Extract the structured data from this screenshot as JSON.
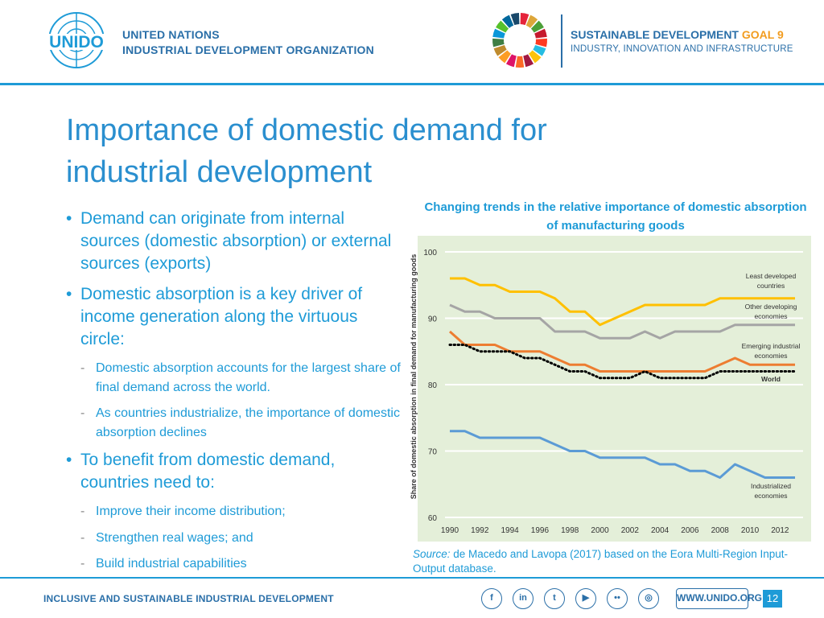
{
  "header": {
    "org_line1": "UNITED NATIONS",
    "org_line2": "INDUSTRIAL DEVELOPMENT ORGANIZATION",
    "logo_text": "UNIDO",
    "sdg_title_main": "SUSTAINABLE DEVELOPMENT",
    "sdg_title_goal": "GOAL 9",
    "sdg_subtitle": "INDUSTRY, INNOVATION AND INFRASTRUCTURE"
  },
  "slide": {
    "title_line1": "Importance of domestic demand for",
    "title_line2": "industrial development",
    "bullets": [
      {
        "level": 1,
        "text": "Demand can originate from internal sources (domestic absorption) or external sources (exports)"
      },
      {
        "level": 1,
        "text": "Domestic absorption is a key driver of income generation along the virtuous circle:"
      },
      {
        "level": 2,
        "text": "Domestic absorption accounts for the largest share of final demand across the world."
      },
      {
        "level": 2,
        "text": "As countries industrialize, the importance of domestic absorption declines"
      },
      {
        "level": 1,
        "text": "To benefit from domestic demand, countries need to:"
      },
      {
        "level": 2,
        "text": "Improve their income distribution;"
      },
      {
        "level": 2,
        "text": "Strengthen real wages; and"
      },
      {
        "level": 2,
        "text": "Build industrial capabilities"
      }
    ],
    "source_label": "Source:",
    "source_text": " de Macedo and Lavopa (2017) based on the Eora Multi-Region Input-Output database."
  },
  "chart_data": {
    "type": "line",
    "title": "Changing trends in the relative importance of domestic absorption of manufacturing goods",
    "ylabel": "Share of domestic absorption in final demand for manufacturing goods",
    "xlabel": "",
    "ylim": [
      60,
      100
    ],
    "yticks": [
      60,
      70,
      80,
      90,
      100
    ],
    "x": [
      1990,
      1991,
      1992,
      1993,
      1994,
      1995,
      1996,
      1997,
      1998,
      1999,
      2000,
      2001,
      2002,
      2003,
      2004,
      2005,
      2006,
      2007,
      2008,
      2009,
      2010,
      2011,
      2012,
      2013
    ],
    "xtick_labels": [
      "1990",
      "1992",
      "1994",
      "1996",
      "1998",
      "2000",
      "2002",
      "2004",
      "2006",
      "2008",
      "2010",
      "2012"
    ],
    "grid": true,
    "background": "#e4efd9",
    "series": [
      {
        "name": "Least developed countries",
        "label_lines": [
          "Least developed",
          "countries"
        ],
        "color": "#ffc000",
        "dashed": false,
        "values": [
          96,
          96,
          95,
          95,
          94,
          94,
          94,
          93,
          91,
          91,
          89,
          90,
          91,
          92,
          92,
          92,
          92,
          92,
          93,
          93,
          93,
          93,
          93,
          93
        ]
      },
      {
        "name": "Other developing economies",
        "label_lines": [
          "Other developing",
          "economies"
        ],
        "color": "#a5a5a5",
        "dashed": false,
        "values": [
          92,
          91,
          91,
          90,
          90,
          90,
          90,
          88,
          88,
          88,
          87,
          87,
          87,
          88,
          87,
          88,
          88,
          88,
          88,
          89,
          89,
          89,
          89,
          89
        ]
      },
      {
        "name": "Emerging industrial economies",
        "label_lines": [
          "Emerging industrial",
          "economies"
        ],
        "color": "#ed7d31",
        "dashed": false,
        "values": [
          88,
          86,
          86,
          86,
          85,
          85,
          85,
          84,
          83,
          83,
          82,
          82,
          82,
          82,
          82,
          82,
          82,
          82,
          83,
          84,
          83,
          83,
          83,
          83
        ]
      },
      {
        "name": "World",
        "label_lines": [
          "World"
        ],
        "color": "#000000",
        "dashed": true,
        "values": [
          86,
          86,
          85,
          85,
          85,
          84,
          84,
          83,
          82,
          82,
          81,
          81,
          81,
          82,
          81,
          81,
          81,
          81,
          82,
          82,
          82,
          82,
          82,
          82
        ]
      },
      {
        "name": "Industrialized economies",
        "label_lines": [
          "Industrialized",
          "economies"
        ],
        "color": "#5b9bd5",
        "dashed": false,
        "values": [
          73,
          73,
          72,
          72,
          72,
          72,
          72,
          71,
          70,
          70,
          69,
          69,
          69,
          69,
          68,
          68,
          67,
          67,
          66,
          68,
          67,
          66,
          66,
          66
        ]
      }
    ]
  },
  "footer": {
    "tagline": "INCLUSIVE AND SUSTAINABLE INDUSTRIAL DEVELOPMENT",
    "social": [
      {
        "name": "facebook",
        "glyph": "f"
      },
      {
        "name": "linkedin",
        "glyph": "in"
      },
      {
        "name": "twitter",
        "glyph": "t"
      },
      {
        "name": "youtube",
        "glyph": "▶"
      },
      {
        "name": "flickr",
        "glyph": "••"
      },
      {
        "name": "instagram",
        "glyph": "◎"
      }
    ],
    "website": "WWW.UNIDO.ORG",
    "page_number": "12"
  },
  "colors": {
    "accent": "#1e9bd7",
    "brand_dark": "#2a6fa8",
    "goal": "#f29c1f"
  }
}
